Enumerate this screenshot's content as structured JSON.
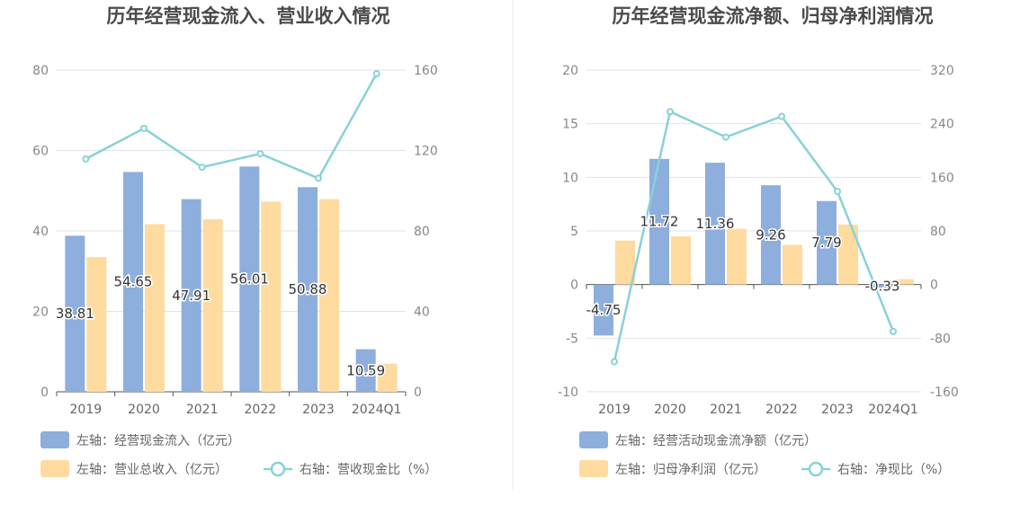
{
  "colors": {
    "bar1": "#8eaedd",
    "bar2": "#ffdba0",
    "line": "#88d2d8",
    "grid": "#dde3ee",
    "axis": "#555555",
    "divider": "#e8e8e8"
  },
  "chart_data": [
    {
      "type": "bar",
      "title": "历年经营现金流入、营业收入情况",
      "categories": [
        "2019",
        "2020",
        "2021",
        "2022",
        "2023",
        "2024Q1"
      ],
      "left_axis": {
        "ticks": [
          "0",
          "20",
          "40",
          "60",
          "80"
        ],
        "ylim": [
          0,
          80
        ]
      },
      "right_axis": {
        "ticks": [
          "0",
          "40",
          "80",
          "120",
          "160"
        ],
        "ylim": [
          0,
          160
        ]
      },
      "series": [
        {
          "name": "左轴：经营现金流入（亿元）",
          "type": "bar",
          "axis": "left",
          "values": [
            38.81,
            54.65,
            47.91,
            56.01,
            50.88,
            10.59
          ],
          "labels": [
            "38.81",
            "54.65",
            "47.91",
            "56.01",
            "50.88",
            "10.59"
          ]
        },
        {
          "name": "左轴：营业总收入（亿元）",
          "type": "bar",
          "axis": "left",
          "values": [
            33.5,
            41.7,
            42.9,
            47.3,
            47.9,
            7.0
          ]
        },
        {
          "name": "右轴：营收现金比（%）",
          "type": "line",
          "axis": "right",
          "values": [
            115.8,
            131,
            111.7,
            118.4,
            106.2,
            158.2
          ]
        }
      ]
    },
    {
      "type": "bar",
      "title": "历年经营现金流净额、归母净利润情况",
      "categories": [
        "2019",
        "2020",
        "2021",
        "2022",
        "2023",
        "2024Q1"
      ],
      "left_axis": {
        "ticks": [
          "-10",
          "-5",
          "0",
          "5",
          "10",
          "15",
          "20"
        ],
        "ylim": [
          -10,
          20
        ]
      },
      "right_axis": {
        "ticks": [
          "-160",
          "-80",
          "0",
          "80",
          "160",
          "240",
          "320"
        ],
        "ylim": [
          -160,
          320
        ]
      },
      "series": [
        {
          "name": "左轴：经营活动现金流净额（亿元）",
          "type": "bar",
          "axis": "left",
          "values": [
            -4.75,
            11.72,
            11.36,
            9.26,
            7.79,
            -0.33
          ],
          "labels": [
            "-4.75",
            "11.72",
            "11.36",
            "9.26",
            "7.79",
            "-0.33"
          ]
        },
        {
          "name": "左轴：归母净利润（亿元）",
          "type": "bar",
          "axis": "left",
          "values": [
            4.1,
            4.5,
            5.2,
            3.7,
            5.6,
            0.5
          ]
        },
        {
          "name": "右轴：净现比（%）",
          "type": "line",
          "axis": "right",
          "values": [
            -115,
            258,
            220,
            251,
            139,
            -70
          ]
        }
      ]
    }
  ]
}
